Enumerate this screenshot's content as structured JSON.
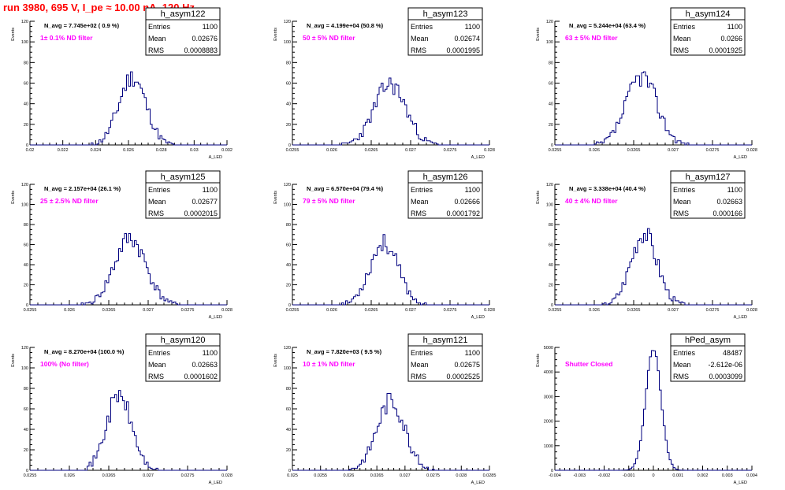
{
  "title": "run 3980,   695 V, I_pe ≈ 10.00 nA, 120 Hz",
  "colors": {
    "title": "#ff0000",
    "histogram": "#00007f",
    "filter_label": "#ff00ff",
    "axis": "#000000"
  },
  "stats_labels": {
    "entries": "Entries",
    "mean": "Mean",
    "rms": "RMS"
  },
  "chart_data": [
    {
      "type": "bar",
      "name": "h_asym122",
      "navg": "N_avg = 7.745e+02 ( 0.9 %)",
      "filter": "1± 0.1% ND filter",
      "entries": "1100",
      "mean": "0.02676",
      "rms": "0.0008883",
      "ylabel": "Events",
      "xlabel": "A_LED",
      "xlim": [
        0.02,
        0.033
      ],
      "ylim": [
        0,
        120
      ],
      "xticks": [
        "0.02",
        "0.022",
        "0.024",
        "0.026",
        "0.028",
        "0.03",
        "0.032"
      ],
      "yticks": [
        "0",
        "20",
        "40",
        "60",
        "80",
        "100",
        "120"
      ],
      "hist": {
        "center": 0.02676,
        "sigma": 0.00089,
        "peak": 66,
        "seed": 11
      }
    },
    {
      "type": "bar",
      "name": "h_asym123",
      "navg": "N_avg = 4.199e+04 (50.8 %)",
      "filter": "50 ± 5% ND filter",
      "entries": "1100",
      "mean": "0.02674",
      "rms": "0.0001995",
      "ylabel": "Events",
      "xlabel": "A_LED",
      "xlim": [
        0.0255,
        0.028
      ],
      "ylim": [
        0,
        120
      ],
      "xticks": [
        "0.0255",
        "0.026",
        "0.0265",
        "0.027",
        "0.0275",
        "0.028"
      ],
      "yticks": [
        "0",
        "20",
        "40",
        "60",
        "80",
        "100",
        "120"
      ],
      "hist": {
        "center": 0.02674,
        "sigma": 0.0002,
        "peak": 59,
        "seed": 23
      }
    },
    {
      "type": "bar",
      "name": "h_asym124",
      "navg": "N_avg = 5.244e+04 (63.4 %)",
      "filter": "63 ± 5% ND filter",
      "entries": "1100",
      "mean": "0.0266",
      "rms": "0.0001925",
      "ylabel": "Events",
      "xlabel": "A_LED",
      "xlim": [
        0.0255,
        0.028
      ],
      "ylim": [
        0,
        120
      ],
      "xticks": [
        "0.0255",
        "0.026",
        "0.0265",
        "0.027",
        "0.0275",
        "0.028"
      ],
      "yticks": [
        "0",
        "20",
        "40",
        "60",
        "80",
        "100",
        "120"
      ],
      "hist": {
        "center": 0.0266,
        "sigma": 0.000193,
        "peak": 67,
        "seed": 37
      }
    },
    {
      "type": "bar",
      "name": "h_asym125",
      "navg": "N_avg = 2.157e+04 (26.1 %)",
      "filter": "25 ± 2.5% ND filter",
      "entries": "1100",
      "mean": "0.02677",
      "rms": "0.0002015",
      "ylabel": "Events",
      "xlabel": "A_LED",
      "xlim": [
        0.0255,
        0.028
      ],
      "ylim": [
        0,
        120
      ],
      "xticks": [
        "0.0255",
        "0.026",
        "0.0265",
        "0.027",
        "0.0275",
        "0.028"
      ],
      "yticks": [
        "0",
        "20",
        "40",
        "60",
        "80",
        "100",
        "120"
      ],
      "hist": {
        "center": 0.02677,
        "sigma": 0.0002,
        "peak": 66,
        "seed": 41
      }
    },
    {
      "type": "bar",
      "name": "h_asym126",
      "navg": "N_avg = 6.570e+04 (79.4 %)",
      "filter": "79 ± 5% ND filter",
      "entries": "1100",
      "mean": "0.02666",
      "rms": "0.0001792",
      "ylabel": "Events",
      "xlabel": "A_LED",
      "xlim": [
        0.0255,
        0.028
      ],
      "ylim": [
        0,
        120
      ],
      "xticks": [
        "0.0255",
        "0.026",
        "0.0265",
        "0.027",
        "0.0275",
        "0.028"
      ],
      "yticks": [
        "0",
        "20",
        "40",
        "60",
        "80",
        "100",
        "120"
      ],
      "hist": {
        "center": 0.02666,
        "sigma": 0.00018,
        "peak": 62,
        "seed": 53
      }
    },
    {
      "type": "bar",
      "name": "h_asym127",
      "navg": "N_avg = 3.338e+04 (40.4 %)",
      "filter": "40 ± 4% ND filter",
      "entries": "1100",
      "mean": "0.02663",
      "rms": "0.000166",
      "ylabel": "Events",
      "xlabel": "A_LED",
      "xlim": [
        0.0255,
        0.028
      ],
      "ylim": [
        0,
        120
      ],
      "xticks": [
        "0.0255",
        "0.026",
        "0.0265",
        "0.027",
        "0.0275",
        "0.028"
      ],
      "yticks": [
        "0",
        "20",
        "40",
        "60",
        "80",
        "100",
        "120"
      ],
      "hist": {
        "center": 0.02663,
        "sigma": 0.000166,
        "peak": 72,
        "seed": 67
      }
    },
    {
      "type": "bar",
      "name": "h_asym120",
      "navg": "N_avg = 8.270e+04 (100.0 %)",
      "filter": "100% (No filter)",
      "entries": "1100",
      "mean": "0.02663",
      "rms": "0.0001602",
      "ylabel": "Events",
      "xlabel": "A_LED",
      "xlim": [
        0.0255,
        0.028
      ],
      "ylim": [
        0,
        120
      ],
      "xticks": [
        "0.0255",
        "0.026",
        "0.0265",
        "0.027",
        "0.0275",
        "0.028"
      ],
      "yticks": [
        "0",
        "20",
        "40",
        "60",
        "80",
        "100",
        "120"
      ],
      "hist": {
        "center": 0.02663,
        "sigma": 0.00016,
        "peak": 73,
        "seed": 71
      }
    },
    {
      "type": "bar",
      "name": "h_asym121",
      "navg": "N_avg = 7.820e+03 ( 9.5 %)",
      "filter": "10 ± 1% ND filter",
      "entries": "1100",
      "mean": "0.02675",
      "rms": "0.0002525",
      "ylabel": "Events",
      "xlabel": "A_LED",
      "xlim": [
        0.025,
        0.0285
      ],
      "ylim": [
        0,
        120
      ],
      "xticks": [
        "0.025",
        "0.0255",
        "0.026",
        "0.0265",
        "0.027",
        "0.0275",
        "0.028",
        "0.0285"
      ],
      "yticks": [
        "0",
        "20",
        "40",
        "60",
        "80",
        "100",
        "120"
      ],
      "hist": {
        "center": 0.02675,
        "sigma": 0.00025,
        "peak": 68,
        "seed": 83
      }
    },
    {
      "type": "bar",
      "name": "hPed_asym",
      "navg": "",
      "filter": "Shutter Closed",
      "entries": "48487",
      "mean": "-2.612e-06",
      "rms": "0.0003099",
      "ylabel": "Events",
      "xlabel": "A_LED",
      "xlim": [
        -0.004,
        0.004
      ],
      "ylim": [
        0,
        5000
      ],
      "xticks": [
        "-0.004",
        "-0.003",
        "-0.002",
        "-0.001",
        "0",
        "0.001",
        "0.002",
        "0.003",
        "0.004"
      ],
      "yticks": [
        "0",
        "1000",
        "2000",
        "3000",
        "4000",
        "5000"
      ],
      "hist": {
        "center": -2.6e-06,
        "sigma": 0.00031,
        "peak": 4950,
        "seed": 97
      }
    }
  ]
}
